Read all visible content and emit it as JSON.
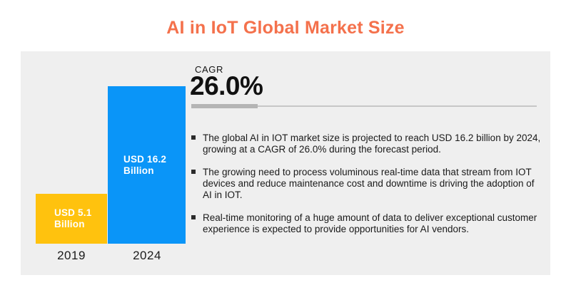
{
  "title": "AI in IoT Global Market Size",
  "colors": {
    "title": "#F4714C",
    "panel_background": "#EFEFEF",
    "bar_2019": "#FFC20E",
    "bar_2024": "#0A95F8",
    "divider_thick": "#B5B5B5",
    "divider_thin": "#C7C7C7",
    "text": "#1A1A1A"
  },
  "chart_data": {
    "type": "bar",
    "title": "AI in IoT Global Market Size",
    "categories": [
      "2019",
      "2024"
    ],
    "values": [
      5.1,
      16.2
    ],
    "unit": "USD billion",
    "legend": "none",
    "grid": false,
    "bars": [
      {
        "category": "2019",
        "value": 5.1,
        "label_line1": "USD 5.1",
        "label_line2": "Billion",
        "color": "#FFC20E"
      },
      {
        "category": "2024",
        "value": 16.2,
        "label_line1": "USD 16.2",
        "label_line2": "Billion",
        "color": "#0A95F8"
      }
    ]
  },
  "cagr": {
    "label": "CAGR",
    "value": "26.0%"
  },
  "bullets": [
    {
      "text": "The global AI in IOT market size is projected to reach USD 16.2 billion by 2024, growing at a CAGR of 26.0% during the forecast period."
    },
    {
      "text": "The growing need to process voluminous real-time data that stream from IOT devices and reduce maintenance cost and downtime is driving the adoption of AI in IOT."
    },
    {
      "text": "Real-time monitoring of a huge amount of data to deliver exceptional customer experience is expected to provide opportunities for AI vendors."
    }
  ]
}
